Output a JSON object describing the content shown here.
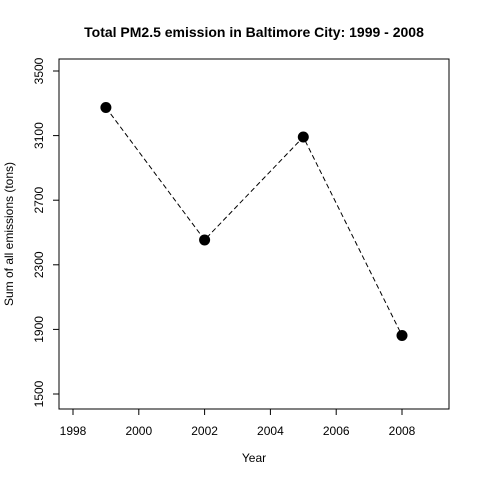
{
  "chart_data": {
    "type": "line",
    "title": "Total PM2.5 emission in Baltimore City: 1999 - 2008",
    "xlabel": "Year",
    "ylabel": "Sum of all emissions (tons)",
    "x": [
      1999,
      2002,
      2005,
      2008
    ],
    "y": [
      3274.18,
      2453.92,
      3091.35,
      1862.28
    ],
    "xlim": [
      1998,
      2009
    ],
    "ylim": [
      1500,
      3500
    ],
    "xticks": [
      1998,
      2000,
      2002,
      2004,
      2006,
      2008
    ],
    "yticks": [
      1500,
      1900,
      2300,
      2700,
      3100,
      3500
    ],
    "line_style": "dashed",
    "marker": "filled-circle",
    "grid": false,
    "colors": {
      "line": "#000000",
      "marker": "#000000"
    }
  }
}
